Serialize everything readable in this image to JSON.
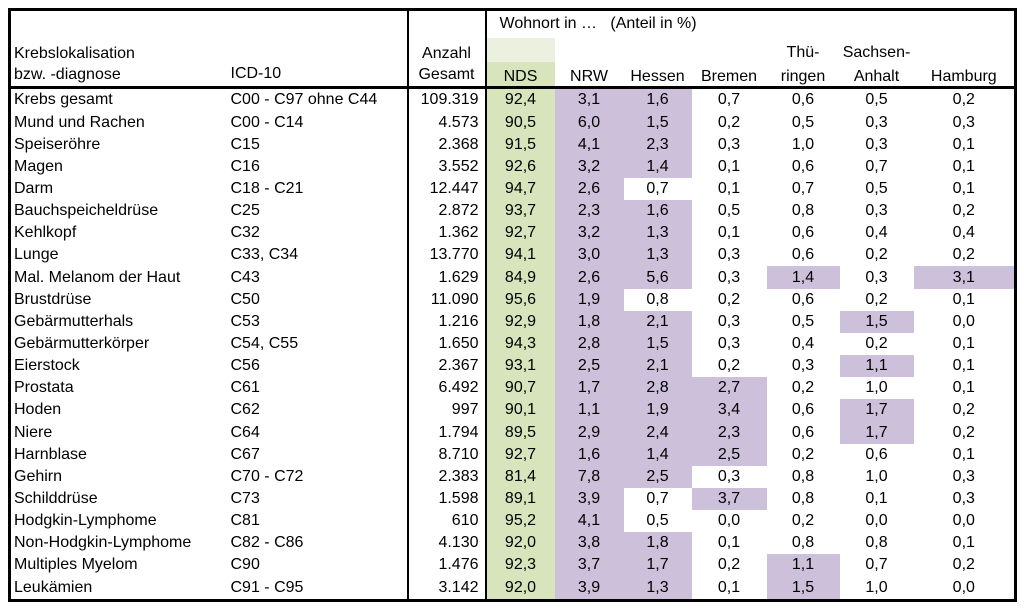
{
  "colors": {
    "nds_green": "#d8e4bc",
    "nds_green_light": "#ebf1de",
    "highlight_purple": "#ccc0da"
  },
  "header": {
    "col1_line1": "Krebslokalisation",
    "col1_line2": "bzw. -diagnose",
    "icd": "ICD-10",
    "anzahl_line1": "Anzahl",
    "anzahl_line2": "Gesamt",
    "wohnort_title": "Wohnort in …   (Anteil in %)",
    "state_cols": [
      {
        "label_top": "",
        "label": "NDS"
      },
      {
        "label_top": "",
        "label": "NRW"
      },
      {
        "label_top": "",
        "label": "Hessen"
      },
      {
        "label_top": "",
        "label": "Bremen"
      },
      {
        "label_top": "Thü-",
        "label": "ringen"
      },
      {
        "label_top": "Sachsen-",
        "label": "Anhalt"
      },
      {
        "label_top": "",
        "label": "Hamburg"
      }
    ]
  },
  "rows": [
    {
      "name": "Krebs gesamt",
      "icd": "C00 - C97 ohne C44",
      "total": "109.319",
      "values": [
        "92,4",
        "3,1",
        "1,6",
        "0,7",
        "0,6",
        "0,5",
        "0,2"
      ],
      "hl": [
        1,
        1,
        1,
        0,
        0,
        0,
        0
      ]
    },
    {
      "name": "Mund und Rachen",
      "icd": "C00 - C14",
      "total": "4.573",
      "values": [
        "90,5",
        "6,0",
        "1,5",
        "0,2",
        "0,5",
        "0,3",
        "0,3"
      ],
      "hl": [
        1,
        1,
        1,
        0,
        0,
        0,
        0
      ]
    },
    {
      "name": "Speiseröhre",
      "icd": "C15",
      "total": "2.368",
      "values": [
        "91,5",
        "4,1",
        "2,3",
        "0,3",
        "1,0",
        "0,3",
        "0,1"
      ],
      "hl": [
        1,
        1,
        1,
        0,
        0,
        0,
        0
      ]
    },
    {
      "name": "Magen",
      "icd": "C16",
      "total": "3.552",
      "values": [
        "92,6",
        "3,2",
        "1,4",
        "0,1",
        "0,6",
        "0,7",
        "0,1"
      ],
      "hl": [
        1,
        1,
        1,
        0,
        0,
        0,
        0
      ]
    },
    {
      "name": "Darm",
      "icd": "C18 - C21",
      "total": "12.447",
      "values": [
        "94,7",
        "2,6",
        "0,7",
        "0,1",
        "0,7",
        "0,5",
        "0,1"
      ],
      "hl": [
        1,
        1,
        0,
        0,
        0,
        0,
        0
      ]
    },
    {
      "name": "Bauchspeicheldrüse",
      "icd": "C25",
      "total": "2.872",
      "values": [
        "93,7",
        "2,3",
        "1,6",
        "0,5",
        "0,8",
        "0,3",
        "0,2"
      ],
      "hl": [
        1,
        1,
        1,
        0,
        0,
        0,
        0
      ]
    },
    {
      "name": "Kehlkopf",
      "icd": "C32",
      "total": "1.362",
      "values": [
        "92,7",
        "3,2",
        "1,3",
        "0,1",
        "0,6",
        "0,4",
        "0,4"
      ],
      "hl": [
        1,
        1,
        1,
        0,
        0,
        0,
        0
      ]
    },
    {
      "name": "Lunge",
      "icd": "C33, C34",
      "total": "13.770",
      "values": [
        "94,1",
        "3,0",
        "1,3",
        "0,3",
        "0,6",
        "0,2",
        "0,2"
      ],
      "hl": [
        1,
        1,
        1,
        0,
        0,
        0,
        0
      ]
    },
    {
      "name": "Mal. Melanom der Haut",
      "icd": "C43",
      "total": "1.629",
      "values": [
        "84,9",
        "2,6",
        "5,6",
        "0,3",
        "1,4",
        "0,3",
        "3,1"
      ],
      "hl": [
        1,
        1,
        1,
        0,
        1,
        0,
        1
      ]
    },
    {
      "name": "Brustdrüse",
      "icd": "C50",
      "total": "11.090",
      "values": [
        "95,6",
        "1,9",
        "0,8",
        "0,2",
        "0,6",
        "0,2",
        "0,1"
      ],
      "hl": [
        1,
        1,
        0,
        0,
        0,
        0,
        0
      ]
    },
    {
      "name": "Gebärmutterhals",
      "icd": "C53",
      "total": "1.216",
      "values": [
        "92,9",
        "1,8",
        "2,1",
        "0,3",
        "0,5",
        "1,5",
        "0,0"
      ],
      "hl": [
        1,
        1,
        1,
        0,
        0,
        1,
        0
      ]
    },
    {
      "name": "Gebärmutterkörper",
      "icd": "C54, C55",
      "total": "1.650",
      "values": [
        "94,3",
        "2,8",
        "1,5",
        "0,3",
        "0,4",
        "0,2",
        "0,1"
      ],
      "hl": [
        1,
        1,
        1,
        0,
        0,
        0,
        0
      ]
    },
    {
      "name": "Eierstock",
      "icd": "C56",
      "total": "2.367",
      "values": [
        "93,1",
        "2,5",
        "2,1",
        "0,2",
        "0,3",
        "1,1",
        "0,1"
      ],
      "hl": [
        1,
        1,
        1,
        0,
        0,
        1,
        0
      ]
    },
    {
      "name": "Prostata",
      "icd": "C61",
      "total": "6.492",
      "values": [
        "90,7",
        "1,7",
        "2,8",
        "2,7",
        "0,2",
        "1,0",
        "0,1"
      ],
      "hl": [
        1,
        1,
        1,
        1,
        0,
        0,
        0
      ]
    },
    {
      "name": "Hoden",
      "icd": "C62",
      "total": "997",
      "values": [
        "90,1",
        "1,1",
        "1,9",
        "3,4",
        "0,6",
        "1,7",
        "0,2"
      ],
      "hl": [
        1,
        1,
        1,
        1,
        0,
        1,
        0
      ]
    },
    {
      "name": "Niere",
      "icd": "C64",
      "total": "1.794",
      "values": [
        "89,5",
        "2,9",
        "2,4",
        "2,3",
        "0,6",
        "1,7",
        "0,2"
      ],
      "hl": [
        1,
        1,
        1,
        1,
        0,
        1,
        0
      ]
    },
    {
      "name": "Harnblase",
      "icd": "C67",
      "total": "8.710",
      "values": [
        "92,7",
        "1,6",
        "1,4",
        "2,5",
        "0,2",
        "0,6",
        "0,1"
      ],
      "hl": [
        1,
        1,
        1,
        1,
        0,
        0,
        0
      ]
    },
    {
      "name": "Gehirn",
      "icd": "C70 - C72",
      "total": "2.383",
      "values": [
        "81,4",
        "7,8",
        "2,5",
        "0,3",
        "0,8",
        "1,0",
        "0,3"
      ],
      "hl": [
        1,
        1,
        1,
        0,
        0,
        0,
        0
      ]
    },
    {
      "name": "Schilddrüse",
      "icd": "C73",
      "total": "1.598",
      "values": [
        "89,1",
        "3,9",
        "0,7",
        "3,7",
        "0,8",
        "0,1",
        "0,3"
      ],
      "hl": [
        1,
        1,
        0,
        1,
        0,
        0,
        0
      ]
    },
    {
      "name": "Hodgkin-Lymphome",
      "icd": "C81",
      "total": "610",
      "values": [
        "95,2",
        "4,1",
        "0,5",
        "0,0",
        "0,2",
        "0,0",
        "0,0"
      ],
      "hl": [
        1,
        1,
        0,
        0,
        0,
        0,
        0
      ]
    },
    {
      "name": "Non-Hodgkin-Lymphome",
      "icd": "C82 - C86",
      "total": "4.130",
      "values": [
        "92,0",
        "3,8",
        "1,8",
        "0,1",
        "0,8",
        "0,8",
        "0,1"
      ],
      "hl": [
        1,
        1,
        1,
        0,
        0,
        0,
        0
      ]
    },
    {
      "name": "Multiples Myelom",
      "icd": "C90",
      "total": "1.476",
      "values": [
        "92,3",
        "3,7",
        "1,7",
        "0,2",
        "1,1",
        "0,7",
        "0,2"
      ],
      "hl": [
        1,
        1,
        1,
        0,
        1,
        0,
        0
      ]
    },
    {
      "name": "Leukämien",
      "icd": "C91 - C95",
      "total": "3.142",
      "values": [
        "92,0",
        "3,9",
        "1,3",
        "0,1",
        "1,5",
        "1,0",
        "0,0"
      ],
      "hl": [
        1,
        1,
        1,
        0,
        1,
        0,
        0
      ]
    }
  ]
}
